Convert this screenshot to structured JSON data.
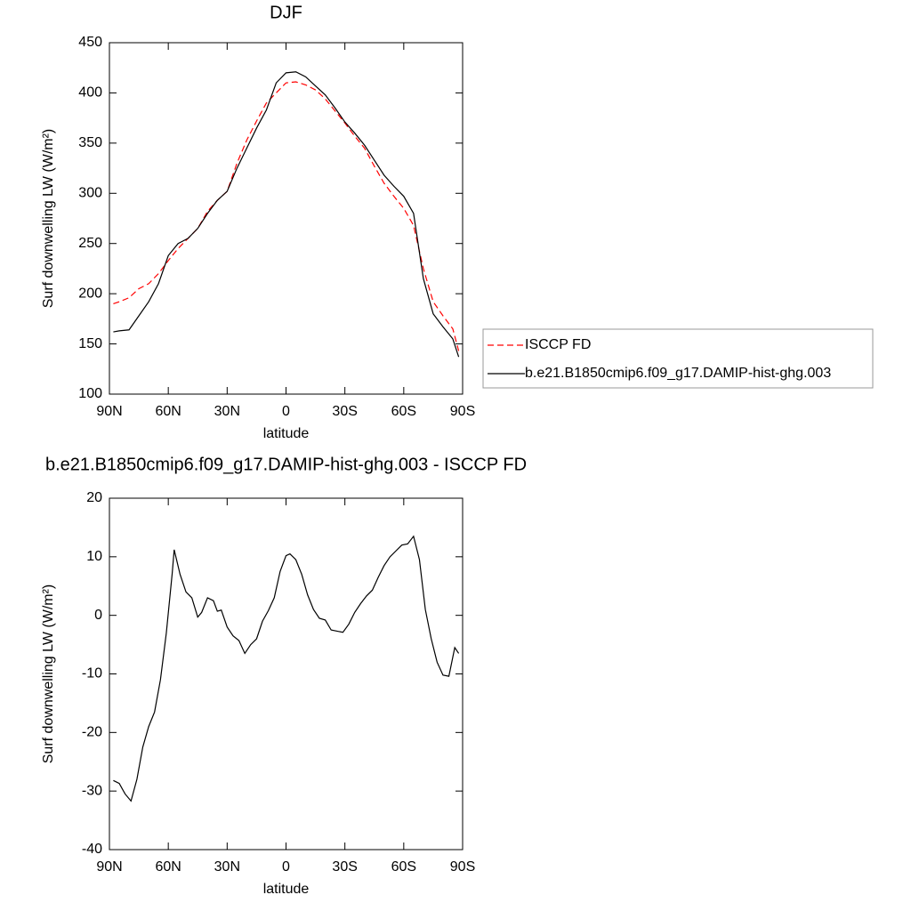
{
  "chart_data": [
    {
      "type": "line",
      "title": "DJF",
      "x_label": "latitude",
      "y_label": "Surf downwelling LW (W/m²)",
      "x": [
        88,
        85,
        80,
        75,
        70,
        65,
        60,
        55,
        50,
        45,
        40,
        35,
        30,
        25,
        20,
        15,
        10,
        5,
        0,
        -5,
        -10,
        -15,
        -20,
        -25,
        -30,
        -35,
        -40,
        -45,
        -50,
        -55,
        -60,
        -65,
        -70,
        -75,
        -80,
        -85,
        -88
      ],
      "series": [
        {
          "name": "ISCCP FD",
          "color": "#ff0000",
          "dashed": true,
          "values": [
            190,
            192,
            196,
            205,
            210,
            220,
            233,
            245,
            255,
            265,
            282,
            293,
            302,
            330,
            353,
            372,
            390,
            400,
            410,
            411,
            408,
            403,
            394,
            382,
            370,
            357,
            345,
            327,
            310,
            297,
            285,
            268,
            225,
            192,
            178,
            165,
            143
          ]
        },
        {
          "name": "b.e21.B1850cmip6.f09_g17.DAMIP-hist-ghg.003",
          "color": "#000000",
          "dashed": false,
          "values": [
            162,
            163,
            164,
            178,
            192,
            210,
            238,
            250,
            255,
            265,
            280,
            293,
            302,
            325,
            345,
            365,
            383,
            410,
            420,
            421,
            416,
            407,
            398,
            385,
            371,
            360,
            348,
            333,
            318,
            307,
            297,
            280,
            215,
            180,
            167,
            155,
            137
          ]
        }
      ],
      "xlim": [
        90,
        -90
      ],
      "xticks": [
        {
          "value": 90,
          "label": "90N"
        },
        {
          "value": 60,
          "label": "60N"
        },
        {
          "value": 30,
          "label": "30N"
        },
        0,
        {
          "value": -30,
          "label": "30S"
        },
        {
          "value": -60,
          "label": "60S"
        },
        {
          "value": -90,
          "label": "90S"
        }
      ],
      "ylim": [
        100,
        450
      ],
      "yticks": [
        100,
        150,
        200,
        250,
        300,
        350,
        400,
        450
      ],
      "legend": "right"
    },
    {
      "type": "line",
      "title": "b.e21.B1850cmip6.f09_g17.DAMIP-hist-ghg.003 - ISCCP FD",
      "x_label": "latitude",
      "y_label": "Surf downwelling LW (W/m²)",
      "x": [
        88,
        85,
        82,
        79,
        76,
        73,
        70,
        67,
        64,
        61,
        58,
        57,
        54,
        51,
        48,
        45,
        43,
        40,
        37,
        35,
        33,
        30,
        27,
        24,
        21,
        18,
        15,
        12,
        9,
        6,
        3,
        0,
        -2,
        -5,
        -8,
        -11,
        -14,
        -17,
        -20,
        -23,
        -26,
        -29,
        -32,
        -35,
        -38,
        -41,
        -44,
        -47,
        -50,
        -53,
        -56,
        -59,
        -62,
        -65,
        -68,
        -71,
        -74,
        -77,
        -80,
        -83,
        -86,
        -88
      ],
      "series": [
        {
          "color": "#000000",
          "dashed": false,
          "values": [
            -28.2,
            -28.7,
            -30.5,
            -31.7,
            -28,
            -22.5,
            -19,
            -16.5,
            -11,
            -3,
            7.2,
            11.2,
            7,
            4,
            3,
            -0.3,
            0.5,
            3,
            2.5,
            0.7,
            0.9,
            -2,
            -3.5,
            -4.3,
            -6.5,
            -5,
            -4,
            -1,
            0.8,
            3,
            7.5,
            10.2,
            10.5,
            9.5,
            7,
            3.5,
            1,
            -0.5,
            -0.8,
            -2.5,
            -2.7,
            -2.9,
            -1.5,
            0.5,
            2,
            3.3,
            4.3,
            6.5,
            8.5,
            10,
            11,
            12,
            12.2,
            13.5,
            9.5,
            1,
            -4,
            -8,
            -10.2,
            -10.4,
            -5.5,
            -6.5
          ]
        }
      ],
      "xlim": [
        90,
        -90
      ],
      "xticks": [
        {
          "value": 90,
          "label": "90N"
        },
        {
          "value": 60,
          "label": "60N"
        },
        {
          "value": 30,
          "label": "30N"
        },
        0,
        {
          "value": -30,
          "label": "30S"
        },
        {
          "value": -60,
          "label": "60S"
        },
        {
          "value": -90,
          "label": "90S"
        }
      ],
      "ylim": [
        -40,
        20
      ],
      "yticks": [
        -40,
        -30,
        -20,
        -10,
        0,
        10,
        20
      ]
    }
  ]
}
